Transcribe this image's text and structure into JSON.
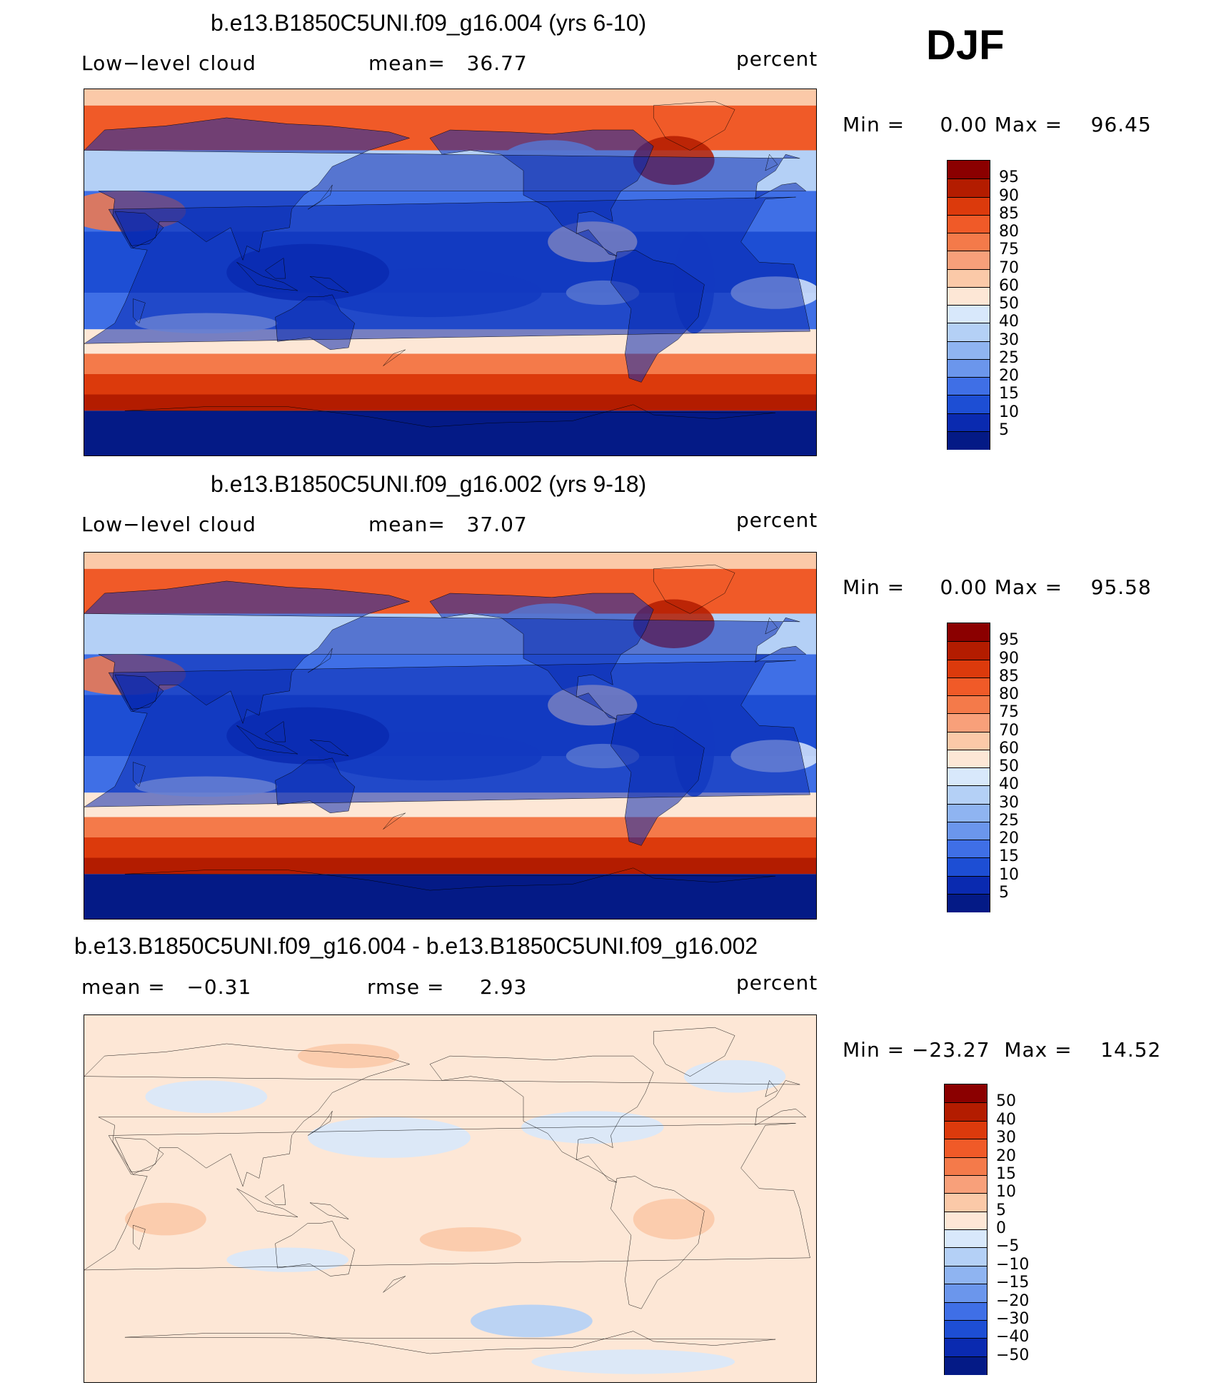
{
  "season": "DJF",
  "panels": [
    {
      "title": "b.e13.B1850C5UNI.f09_g16.004 (yrs 6-10)",
      "left_label": "Low−level cloud",
      "center_label": "mean=   36.77",
      "units": "percent",
      "minmax": "Min =     0.00 Max =    96.45",
      "colorbar_labels": [
        "95",
        "90",
        "85",
        "80",
        "75",
        "70",
        "60",
        "50",
        "40",
        "30",
        "25",
        "20",
        "15",
        "10",
        "5"
      ],
      "colorbar_colors": [
        "#8b0000",
        "#b31c00",
        "#dc3a0c",
        "#f05a28",
        "#f47a4a",
        "#f8a07a",
        "#fbc9a8",
        "#fde7d6",
        "#d8e8fb",
        "#b4d0f6",
        "#8fb4f1",
        "#6b96ec",
        "#3f6fe6",
        "#1d4ed4",
        "#0a2ab0",
        "#041a86"
      ],
      "map_style": "full"
    },
    {
      "title": "b.e13.B1850C5UNI.f09_g16.002 (yrs 9-18)",
      "left_label": "Low−level cloud",
      "center_label": "mean=   37.07",
      "units": "percent",
      "minmax": "Min =     0.00 Max =    95.58",
      "colorbar_labels": [
        "95",
        "90",
        "85",
        "80",
        "75",
        "70",
        "60",
        "50",
        "40",
        "30",
        "25",
        "20",
        "15",
        "10",
        "5"
      ],
      "colorbar_colors": [
        "#8b0000",
        "#b31c00",
        "#dc3a0c",
        "#f05a28",
        "#f47a4a",
        "#f8a07a",
        "#fbc9a8",
        "#fde7d6",
        "#d8e8fb",
        "#b4d0f6",
        "#8fb4f1",
        "#6b96ec",
        "#3f6fe6",
        "#1d4ed4",
        "#0a2ab0",
        "#041a86"
      ],
      "map_style": "full"
    },
    {
      "title": "b.e13.B1850C5UNI.f09_g16.004 - b.e13.B1850C5UNI.f09_g16.002",
      "left_label": "mean =   −0.31",
      "center_label": "rmse =     2.93",
      "units": "percent",
      "minmax": "Min = −23.27  Max =    14.52",
      "colorbar_labels": [
        "50",
        "40",
        "30",
        "20",
        "15",
        "10",
        "5",
        "0",
        "−5",
        "−10",
        "−15",
        "−20",
        "−30",
        "−40",
        "−50"
      ],
      "colorbar_colors": [
        "#8b0000",
        "#b31c00",
        "#dc3a0c",
        "#f05a28",
        "#f47a4a",
        "#f8a07a",
        "#fbc9a8",
        "#fde7d6",
        "#d8e8fb",
        "#b4d0f6",
        "#8fb4f1",
        "#6b96ec",
        "#3f6fe6",
        "#1d4ed4",
        "#0a2ab0",
        "#041a86"
      ],
      "map_style": "diff"
    }
  ]
}
